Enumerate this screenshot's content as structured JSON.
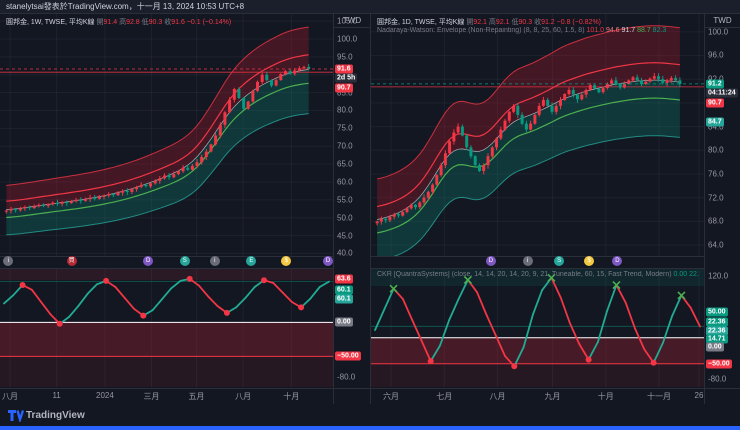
{
  "attribution": {
    "text": "stanelytsai發表於TradingView.com，十一月 13, 2024 10:53 UTC+8"
  },
  "footer": {
    "brand": "TradingView"
  },
  "accent": {
    "blue": "#2962ff",
    "up": "#f23645",
    "down": "#089981",
    "bg": "#131722"
  },
  "left_panel": {
    "currency": "TWD",
    "legend_parts": [
      {
        "t": "圓邦金, 1W, TWSE, 平均K線 ",
        "c": "#d1d4dc"
      },
      {
        "t": "開",
        "c": "#787b86"
      },
      {
        "t": "91.4 ",
        "c": "#f23645"
      },
      {
        "t": "高",
        "c": "#787b86"
      },
      {
        "t": "92.8 ",
        "c": "#f23645"
      },
      {
        "t": "低",
        "c": "#787b86"
      },
      {
        "t": "90.3 ",
        "c": "#f23645"
      },
      {
        "t": "收",
        "c": "#787b86"
      },
      {
        "t": "91.6 ",
        "c": "#f23645"
      },
      {
        "t": "−0.1 (−0.14%)",
        "c": "#f23645"
      }
    ],
    "markers": [
      {
        "x": 0.025,
        "bg": "#6a6d78",
        "g": "i"
      },
      {
        "x": 0.215,
        "bg": "#b22833",
        "g": "買"
      },
      {
        "x": 0.445,
        "bg": "#7e57c2",
        "g": "D"
      },
      {
        "x": 0.555,
        "bg": "#26a69a",
        "g": "S"
      },
      {
        "x": 0.645,
        "bg": "#6a6d78",
        "g": "i"
      },
      {
        "x": 0.755,
        "bg": "#26a69a",
        "g": "E"
      },
      {
        "x": 0.86,
        "bg": "#f5c842",
        "g": "$"
      },
      {
        "x": 0.985,
        "bg": "#7e57c2",
        "g": "D"
      }
    ],
    "time_axis": [
      [
        "八月",
        0.03
      ],
      [
        "11",
        0.17
      ],
      [
        "2024",
        0.315
      ],
      [
        "三月",
        0.455
      ],
      [
        "五月",
        0.59
      ],
      [
        "八月",
        0.73
      ],
      [
        "十月",
        0.875
      ]
    ]
  },
  "right_panel": {
    "currency": "TWD",
    "legend_parts": [
      {
        "t": "圓邦金, 1D, TWSE, 平均K線 ",
        "c": "#d1d4dc"
      },
      {
        "t": "開",
        "c": "#787b86"
      },
      {
        "t": "92.1 ",
        "c": "#f23645"
      },
      {
        "t": "高",
        "c": "#787b86"
      },
      {
        "t": "92.1 ",
        "c": "#f23645"
      },
      {
        "t": "低",
        "c": "#787b86"
      },
      {
        "t": "90.3 ",
        "c": "#f23645"
      },
      {
        "t": "收",
        "c": "#787b86"
      },
      {
        "t": "91.2 ",
        "c": "#f23645"
      },
      {
        "t": "−0.8 (−0.82%)",
        "c": "#f23645"
      }
    ],
    "indicator_parts": [
      {
        "t": "Nadaraya-Watson: Envelope (Non-Repainting) (8, 8, 25, 60, 1.5, 8) ",
        "c": "#787b86"
      },
      {
        "t": "101.0 ",
        "c": "#f23645"
      },
      {
        "t": "94.6 ",
        "c": "#f77c80"
      },
      {
        "t": "91.7 ",
        "c": "#d1d4dc"
      },
      {
        "t": "88.7 ",
        "c": "#4caf50"
      },
      {
        "t": "82.3",
        "c": "#089981"
      }
    ],
    "osc_header_parts": [
      {
        "t": "CKR [QuantraSystems] (close, 14, 14, 20, 14, 20, 9, 21, Tuneable, 60, 15, Fast Trend, Modern) ",
        "c": "#787b86"
      },
      {
        "t": "0.00 ",
        "c": "#089981"
      },
      {
        "t": "22.36…",
        "c": "#089981"
      }
    ],
    "markers": [
      {
        "x": 0.36,
        "bg": "#7e57c2",
        "g": "D"
      },
      {
        "x": 0.47,
        "bg": "#6a6d78",
        "g": "i"
      },
      {
        "x": 0.565,
        "bg": "#26a69a",
        "g": "S"
      },
      {
        "x": 0.655,
        "bg": "#f5c842",
        "g": "$"
      },
      {
        "x": 0.74,
        "bg": "#7e57c2",
        "g": "D"
      }
    ],
    "time_axis": [
      [
        "六月",
        0.06
      ],
      [
        "七月",
        0.22
      ],
      [
        "八月",
        0.38
      ],
      [
        "九月",
        0.545
      ],
      [
        "十月",
        0.705
      ],
      [
        "十一月",
        0.865
      ],
      [
        "26",
        0.985
      ]
    ]
  },
  "chart_data": [
    {
      "id": "left-main",
      "type": "candlestick",
      "symbol": "圓邦金",
      "interval": "1W",
      "exchange": "TWSE",
      "chart_style": "平均K線",
      "ohlc": {
        "open": 91.4,
        "high": 92.8,
        "low": 90.3,
        "close": 91.6,
        "change": "−0.1",
        "change_pct": "−0.14%"
      },
      "closes": [
        52.0,
        52.4,
        52.1,
        52.6,
        53.0,
        52.7,
        53.2,
        53.6,
        53.3,
        53.8,
        54.2,
        53.9,
        54.4,
        54.1,
        54.6,
        55.0,
        54.7,
        55.2,
        55.6,
        55.3,
        55.8,
        56.2,
        56.6,
        56.3,
        57.0,
        57.5,
        57.2,
        58.0,
        58.6,
        59.2,
        58.8,
        59.6,
        60.3,
        61.0,
        61.8,
        61.3,
        62.2,
        63.0,
        64.0,
        63.4,
        64.5,
        65.5,
        67.0,
        68.5,
        70.5,
        73.0,
        76.0,
        79.5,
        83.0,
        86.0,
        83.5,
        80.5,
        82.5,
        85.5,
        88.0,
        90.0,
        88.5,
        87.0,
        88.5,
        90.2,
        91.0,
        90.3,
        91.2,
        91.8,
        92.2,
        91.6
      ],
      "envelope": {
        "upper": 1.13,
        "inner_upper": 1.045,
        "inner_lower": 0.958,
        "lower": 0.865
      },
      "ylim": [
        39,
        107
      ],
      "yticks": [
        105,
        100,
        95,
        90,
        85,
        80,
        75,
        70,
        65,
        60,
        55,
        50,
        45,
        40
      ],
      "hline": {
        "value": 90.7,
        "color": "#f23645"
      },
      "last_line_color": "#f23645",
      "wick_amp": 1.2,
      "scale_badges": [
        {
          "text": "91.6",
          "value": 91.6,
          "bg": "#f23645"
        },
        {
          "text": "2d 5h",
          "value": 89.0,
          "bg": "#2a2e39"
        },
        {
          "text": "90.7",
          "value": 86.4,
          "bg": "#f23645"
        }
      ]
    },
    {
      "id": "left-osc",
      "type": "oscillator",
      "values": [
        28,
        40,
        55,
        48,
        30,
        12,
        -2,
        8,
        24,
        42,
        56,
        61,
        52,
        36,
        20,
        10,
        18,
        34,
        50,
        61,
        64,
        54,
        38,
        24,
        14,
        22,
        36,
        52,
        62,
        58,
        44,
        30,
        22,
        35,
        52,
        60
      ],
      "ylim": [
        -95,
        80
      ],
      "yticks": [
        -80
      ],
      "band": {
        "from": 0,
        "to": -50,
        "color": "rgba(150,32,48,0.40)"
      },
      "band2": {
        "from": -50,
        "to": -95,
        "color": "rgba(150,32,48,0.15)"
      },
      "tint_top": {
        "from": 62,
        "color": "rgba(242,54,69,0.10)"
      },
      "ref_lines": [
        {
          "v": 0,
          "color": "#ffffff",
          "w": 1
        },
        {
          "v": -50,
          "color": "#f23645",
          "w": 1
        },
        {
          "v": 60.1,
          "color": "#089981",
          "w": 0.8,
          "o": 0.55
        }
      ],
      "dot_style": "dots",
      "scale_badges": [
        {
          "text": "63.6",
          "value": 63.6,
          "bg": "#f23645"
        },
        {
          "text": "60.1",
          "value": 48,
          "bg": "#089981"
        },
        {
          "text": "60.1",
          "value": 34,
          "bg": "#26a69a"
        },
        {
          "text": "0.00",
          "value": 0,
          "bg": "#787b86"
        },
        {
          "text": "−50.00",
          "value": -50,
          "bg": "#f23645"
        }
      ]
    },
    {
      "id": "right-main",
      "type": "candlestick",
      "symbol": "圓邦金",
      "interval": "1D",
      "exchange": "TWSE",
      "chart_style": "平均K線",
      "ohlc": {
        "open": 92.1,
        "high": 92.1,
        "low": 90.3,
        "close": 91.2,
        "change": "−0.8",
        "change_pct": "−0.82%"
      },
      "indicator": {
        "name": "Nadaraya-Watson: Envelope (Non-Repainting)",
        "params": "(8, 8, 25, 60, 1.5, 8)",
        "values": [
          101.0,
          94.6,
          91.7,
          88.7,
          82.3
        ]
      },
      "closes": [
        68.0,
        68.4,
        68.2,
        68.8,
        69.2,
        69.0,
        69.6,
        70.2,
        70.8,
        70.4,
        71.2,
        72.0,
        73.0,
        74.2,
        75.8,
        77.5,
        79.5,
        81.5,
        83.0,
        84.0,
        82.5,
        80.5,
        79.0,
        77.5,
        76.5,
        77.5,
        79.0,
        80.5,
        82.0,
        83.5,
        85.0,
        86.5,
        87.5,
        86.0,
        84.5,
        83.5,
        84.5,
        86.0,
        87.5,
        88.5,
        87.5,
        86.5,
        87.5,
        88.5,
        89.5,
        90.2,
        89.4,
        88.6,
        89.4,
        90.2,
        91.0,
        90.4,
        89.8,
        90.5,
        91.2,
        91.8,
        91.2,
        90.6,
        91.2,
        91.8,
        92.3,
        91.8,
        91.2,
        91.6,
        92.1,
        92.5,
        92.0,
        91.4,
        91.8,
        92.2,
        91.8,
        91.2
      ],
      "envelope": {
        "upper": 1.1,
        "inner_upper": 1.032,
        "inner_lower": 0.967,
        "lower": 0.898
      },
      "ylim": [
        62,
        103
      ],
      "yticks": [
        100,
        96,
        92,
        88,
        84,
        80,
        76,
        72,
        68,
        64
      ],
      "hline": {
        "value": 90.7,
        "color": "#f23645"
      },
      "last_line_color": "#089981",
      "wick_amp": 0.8,
      "scale_badges": [
        {
          "text": "91.2",
          "value": 91.2,
          "bg": "#089981"
        },
        {
          "text": "04:11:24",
          "value": 89.6,
          "bg": "#2a2e39"
        },
        {
          "text": "90.7",
          "value": 88.0,
          "bg": "#f23645"
        },
        {
          "text": "84.7",
          "value": 84.7,
          "bg": "#26a69a"
        }
      ]
    },
    {
      "id": "right-osc",
      "type": "oscillator",
      "name": "CKR [QuantraSystems]",
      "params": "(close, 14, 14, 20, 14, 20, 9, 21, Tuneable, 60, 15, Fast Trend, Modern)",
      "values": [
        15,
        55,
        95,
        75,
        35,
        -5,
        -45,
        -15,
        35,
        75,
        112,
        88,
        45,
        5,
        -35,
        -55,
        -18,
        45,
        92,
        116,
        78,
        28,
        -12,
        -42,
        -8,
        52,
        102,
        68,
        18,
        -22,
        -48,
        -10,
        42,
        82,
        58,
        22
      ],
      "ylim": [
        -95,
        135
      ],
      "yticks": [
        120,
        -80
      ],
      "band": {
        "from": 0,
        "to": -50,
        "color": "rgba(150,32,48,0.40)"
      },
      "band2": {
        "from": -50,
        "to": -95,
        "color": "rgba(150,32,48,0.15)"
      },
      "tint_top": {
        "from": 100,
        "color": "rgba(8,153,129,0.12)"
      },
      "ref_lines": [
        {
          "v": 0,
          "color": "#ffffff",
          "w": 1
        },
        {
          "v": -50,
          "color": "#f23645",
          "w": 1
        },
        {
          "v": 22.36,
          "color": "#089981",
          "w": 0.8,
          "o": 0.55
        }
      ],
      "dot_style": "dots-x",
      "scale_badges": [
        {
          "text": "50.00",
          "value": 50,
          "bg": "#089981"
        },
        {
          "text": "22.36",
          "value": 30,
          "bg": "#089981"
        },
        {
          "text": "22.36",
          "value": 14,
          "bg": "#26a69a"
        },
        {
          "text": "14.71",
          "value": -2,
          "bg": "#089981"
        },
        {
          "text": "0.00",
          "value": -18,
          "bg": "#787b86"
        },
        {
          "text": "−50.00",
          "value": -50,
          "bg": "#f23645"
        }
      ]
    }
  ]
}
